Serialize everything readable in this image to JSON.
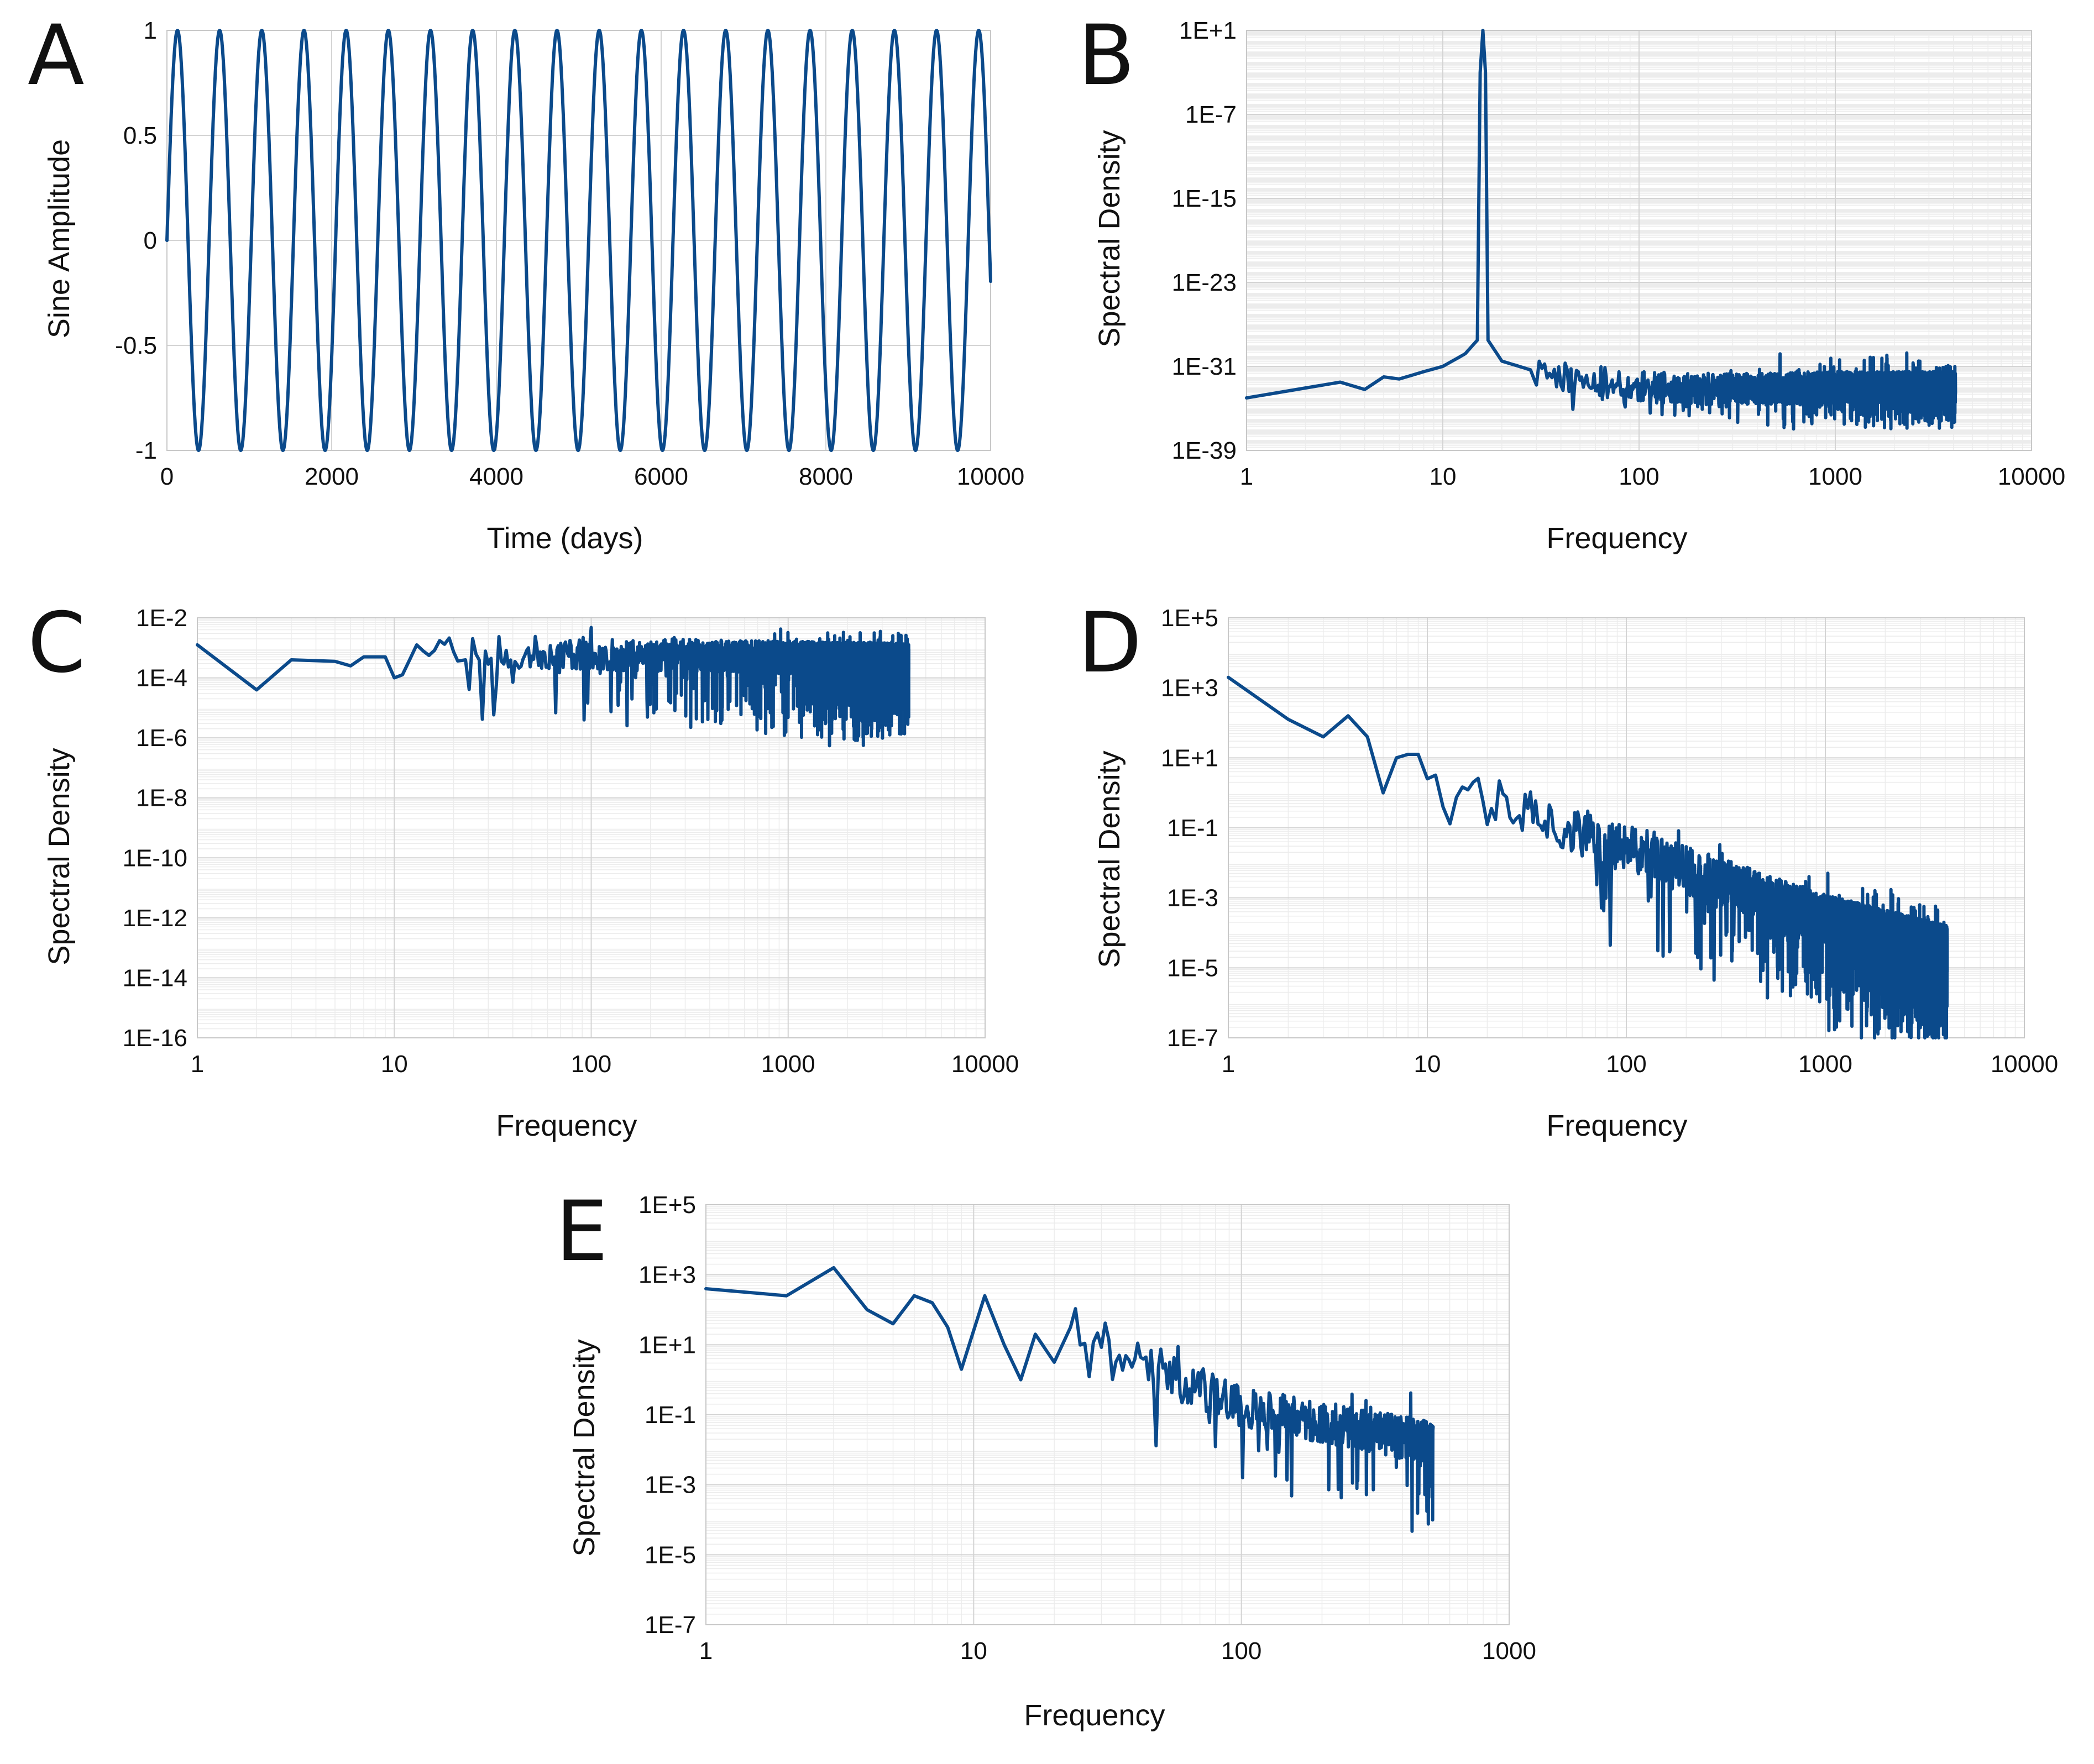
{
  "colors": {
    "series": "#0b4a8b",
    "background": "#ffffff"
  },
  "chart_data": [
    {
      "panel": "A",
      "type": "line",
      "title": "",
      "xlabel": "Time (days)",
      "ylabel": "Sine Amplitude",
      "xscale": "linear",
      "yscale": "linear",
      "xlim": [
        0,
        10000
      ],
      "ylim": [
        -1,
        1
      ],
      "xticks": [
        "0",
        "2000",
        "4000",
        "6000",
        "8000",
        "10000"
      ],
      "yticks": [
        "1",
        "0.5",
        "0",
        "-0.5",
        "-1"
      ],
      "series": [
        {
          "name": "sine",
          "kind": "sine",
          "period_days": 512,
          "phase_days": 0
        }
      ]
    },
    {
      "panel": "B",
      "type": "line",
      "title": "",
      "xlabel": "Frequency",
      "ylabel": "Spectral Density",
      "xscale": "log",
      "yscale": "log",
      "xlim": [
        1,
        10000
      ],
      "ylim_exponent": [
        -39,
        1
      ],
      "xticks": [
        "1",
        "10",
        "100",
        "1000",
        "10000"
      ],
      "yticks": [
        "1E+1",
        "1E-7",
        "1E-15",
        "1E-23",
        "1E-31",
        "1E-39"
      ],
      "series": [
        {
          "name": "spectrum",
          "anchors_log10": [
            [
              1,
              -34.0
            ],
            [
              3,
              -32.5
            ],
            [
              4,
              -33.2
            ],
            [
              5,
              -32.0
            ],
            [
              6,
              -32.2
            ],
            [
              8,
              -31.5
            ],
            [
              10,
              -31.0
            ],
            [
              13,
              -29.8
            ],
            [
              15,
              -28.5
            ],
            [
              15.5,
              -3.0
            ],
            [
              16,
              1.0
            ],
            [
              16.5,
              -3.0
            ],
            [
              17,
              -28.5
            ],
            [
              20,
              -30.5
            ],
            [
              30,
              -31.5
            ],
            [
              50,
              -32.2
            ],
            [
              100,
              -33.0
            ],
            [
              300,
              -33.2
            ],
            [
              1000,
              -33.0
            ],
            [
              4096,
              -33.0
            ]
          ],
          "noise_from": 28,
          "noise_amp": 1.5,
          "noise_dips": 2.5,
          "noise_spikes": 2.0
        }
      ]
    },
    {
      "panel": "C",
      "type": "line",
      "title": "",
      "xlabel": "Frequency",
      "ylabel": "Spectral Density",
      "xscale": "log",
      "yscale": "log",
      "xlim": [
        1,
        10000
      ],
      "ylim_exponent": [
        -16,
        -2
      ],
      "xticks": [
        "1",
        "10",
        "100",
        "1000",
        "10000"
      ],
      "yticks": [
        "1E-2",
        "1E-4",
        "1E-6",
        "1E-8",
        "1E-10",
        "1E-12",
        "1E-14",
        "1E-16"
      ],
      "series": [
        {
          "name": "spectrum",
          "anchors_log10": [
            [
              1,
              -2.9
            ],
            [
              2,
              -4.4
            ],
            [
              3,
              -3.4
            ],
            [
              5,
              -3.45
            ],
            [
              6,
              -3.6
            ],
            [
              7,
              -3.3
            ],
            [
              9,
              -3.3
            ],
            [
              10,
              -4.0
            ],
            [
              11,
              -3.9
            ],
            [
              13,
              -2.9
            ],
            [
              14,
              -3.1
            ],
            [
              4096,
              -3.4
            ]
          ],
          "noise_from": 14,
          "noise_amp": 0.55,
          "noise_dips": 2.4,
          "noise_spikes": 0.5
        }
      ]
    },
    {
      "panel": "D",
      "type": "line",
      "title": "",
      "xlabel": "Frequency",
      "ylabel": "Spectral Density",
      "xscale": "log",
      "yscale": "log",
      "xlim": [
        1,
        10000
      ],
      "ylim_exponent": [
        -7,
        5
      ],
      "xticks": [
        "1",
        "10",
        "100",
        "1000",
        "10000"
      ],
      "yticks": [
        "1E+5",
        "1E+3",
        "1E+1",
        "1E-1",
        "1E-3",
        "1E-5",
        "1E-7"
      ],
      "series": [
        {
          "name": "spectrum",
          "anchors_log10": [
            [
              1,
              3.3
            ],
            [
              2,
              2.1
            ],
            [
              3,
              1.6
            ],
            [
              4,
              2.2
            ],
            [
              5,
              1.6
            ],
            [
              6,
              0.0
            ],
            [
              7,
              1.0
            ],
            [
              8,
              1.1
            ],
            [
              9,
              1.1
            ],
            [
              10,
              0.4
            ],
            [
              100,
              -1.6
            ],
            [
              1000,
              -3.6
            ],
            [
              4096,
              -4.5
            ]
          ],
          "noise_from": 10,
          "noise_amp": 0.7,
          "noise_dips": 2.6,
          "noise_spikes": 0.8
        }
      ]
    },
    {
      "panel": "E",
      "type": "line",
      "title": "",
      "xlabel": "Frequency",
      "ylabel": "Spectral Density",
      "xscale": "log",
      "yscale": "log",
      "xlim": [
        1,
        1000
      ],
      "ylim_exponent": [
        -7,
        5
      ],
      "xticks": [
        "1",
        "10",
        "100",
        "1000"
      ],
      "yticks": [
        "1E+5",
        "1E+3",
        "1E+1",
        "1E-1",
        "1E-3",
        "1E-5",
        "1E-7"
      ],
      "series": [
        {
          "name": "spectrum",
          "anchors_log10": [
            [
              1,
              2.6
            ],
            [
              2,
              2.4
            ],
            [
              3,
              3.2
            ],
            [
              4,
              2.0
            ],
            [
              5,
              1.6
            ],
            [
              6,
              2.4
            ],
            [
              7,
              2.2
            ],
            [
              8,
              1.5
            ],
            [
              9,
              0.3
            ],
            [
              11,
              2.4
            ],
            [
              13,
              1.0
            ],
            [
              15,
              0.0
            ],
            [
              17,
              1.3
            ],
            [
              20,
              0.5
            ],
            [
              23,
              1.5
            ],
            [
              100,
              -0.8
            ],
            [
              520,
              -1.8
            ]
          ],
          "noise_from": 23,
          "noise_amp": 0.6,
          "noise_dips": 2.2,
          "noise_spikes": 1.0
        }
      ]
    }
  ]
}
